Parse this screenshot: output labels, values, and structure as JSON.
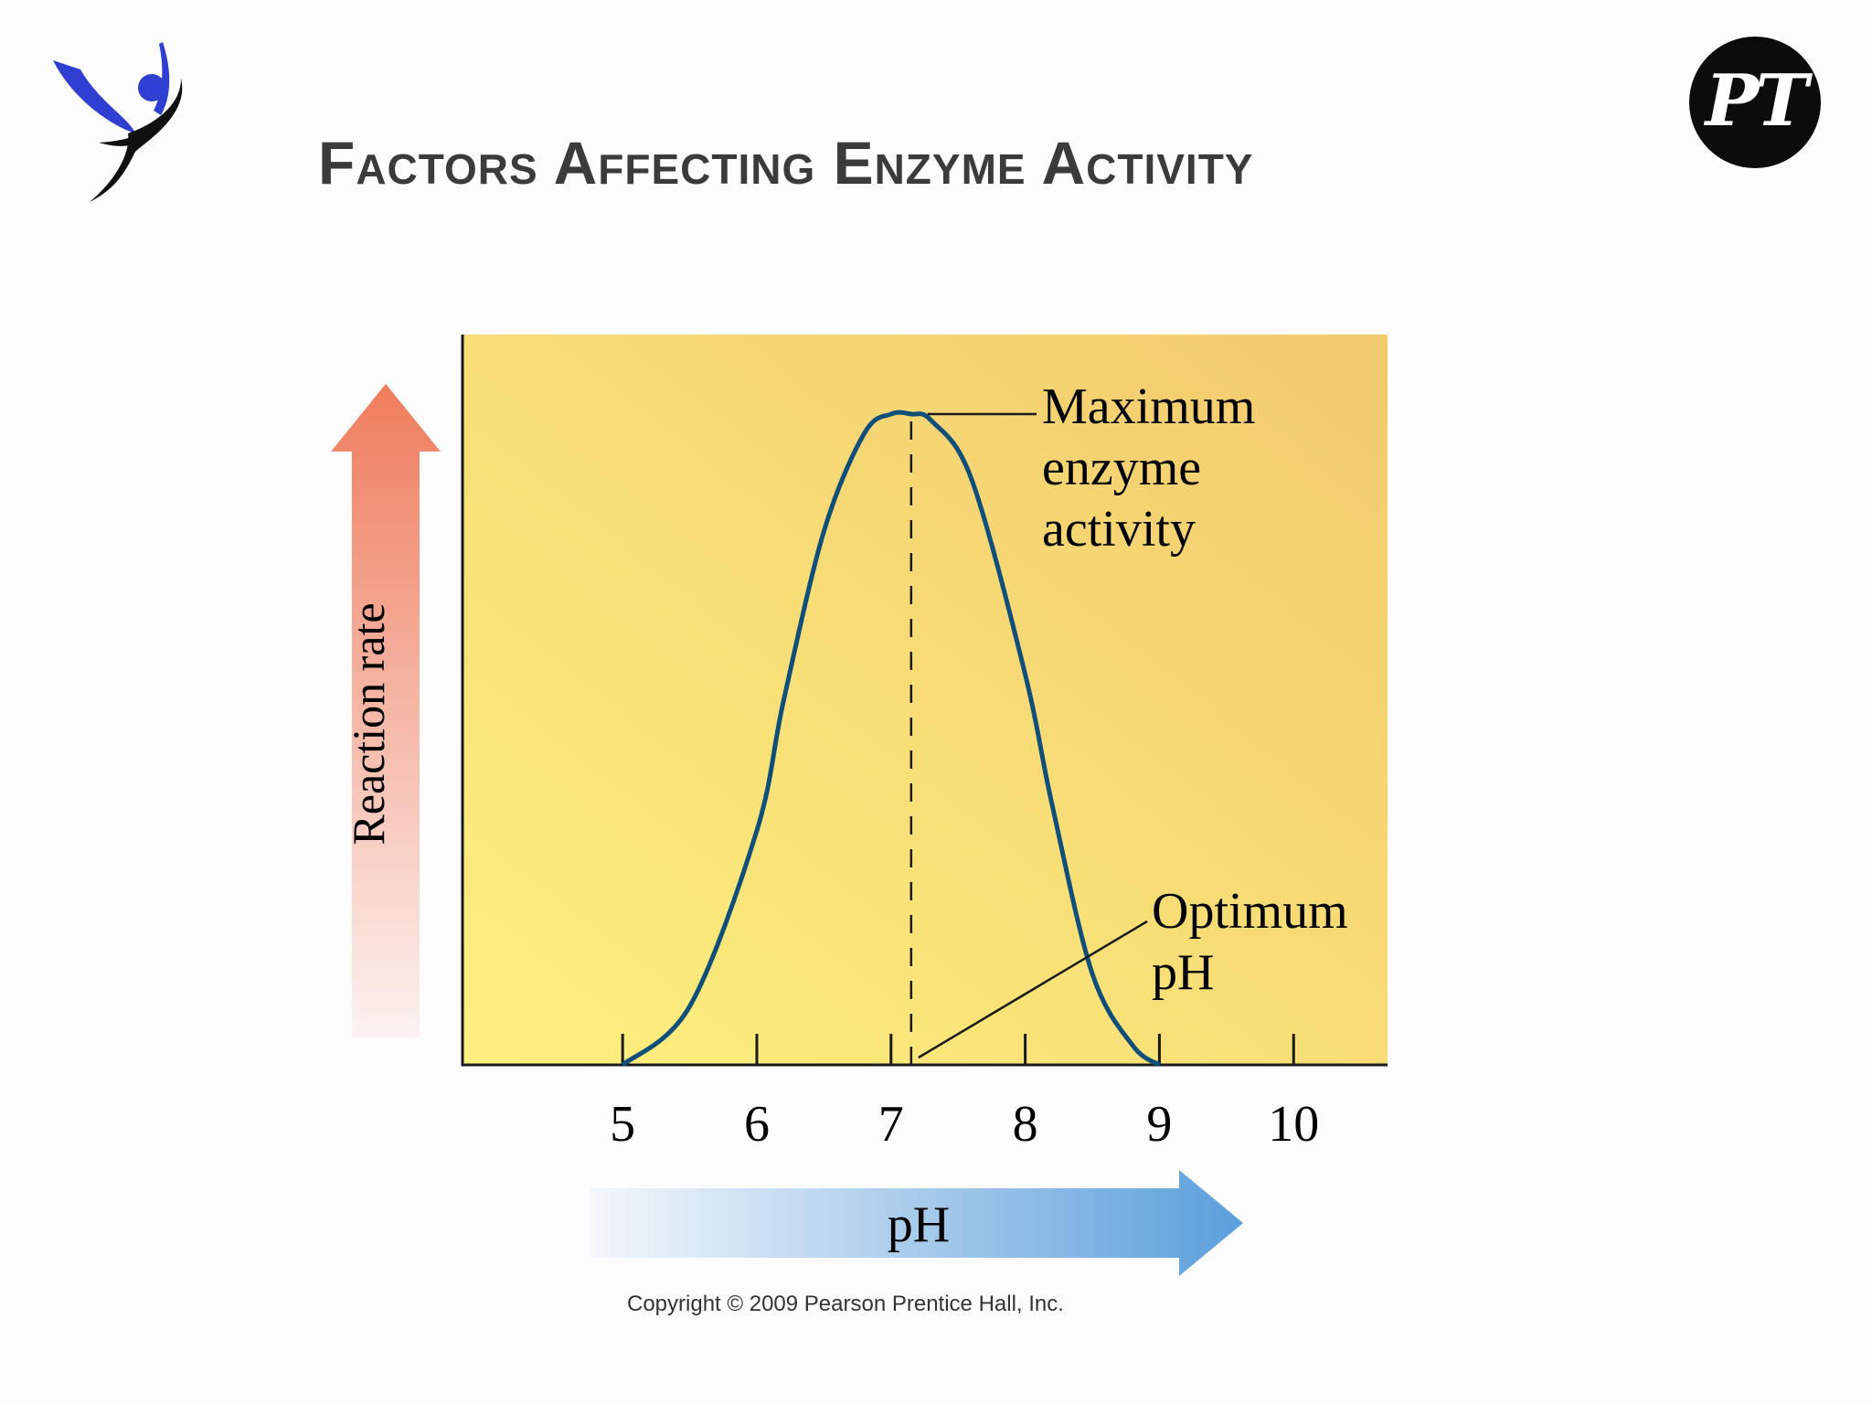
{
  "slide": {
    "title": "Factors Affecting Enzyme Activity",
    "logo_left": "jumping-person-logo",
    "logo_right_text": "PT"
  },
  "chart_data": {
    "type": "line",
    "title": "",
    "xlabel": "pH",
    "ylabel": "Reaction rate",
    "xlim": [
      3.8,
      10.7
    ],
    "ylim": [
      0,
      1
    ],
    "x_ticks": [
      5,
      6,
      7,
      8,
      9,
      10
    ],
    "tick_labels": [
      "5",
      "6",
      "7",
      "8",
      "9",
      "10"
    ],
    "series": [
      {
        "x": [
          5.0,
          5.5,
          6.0,
          6.2,
          6.5,
          6.8,
          7.0,
          7.15,
          7.3,
          7.6,
          8.0,
          8.2,
          8.5,
          8.8,
          9.0
        ],
        "y": [
          0.0,
          0.09,
          0.36,
          0.56,
          0.82,
          0.97,
          1.0,
          1.0,
          0.99,
          0.9,
          0.6,
          0.4,
          0.14,
          0.03,
          0.0
        ]
      }
    ],
    "annotations": [
      {
        "text": [
          "Maximum",
          "enzyme",
          "activity"
        ],
        "x": 7.15,
        "y": 1.0
      },
      {
        "text": [
          "Optimum",
          "pH"
        ],
        "x": 7.15,
        "y": 0.0
      }
    ],
    "optimum_x": 7.15,
    "grid": false,
    "colors": {
      "line": "#0f4f7a",
      "plot_bg_light": "#fdf07e",
      "plot_bg_dark": "#f2c96e",
      "y_arrow": "#ef7c5c",
      "x_arrow": "#5a9fdb"
    }
  },
  "copyright": "Copyright © 2009 Pearson Prentice Hall, Inc."
}
